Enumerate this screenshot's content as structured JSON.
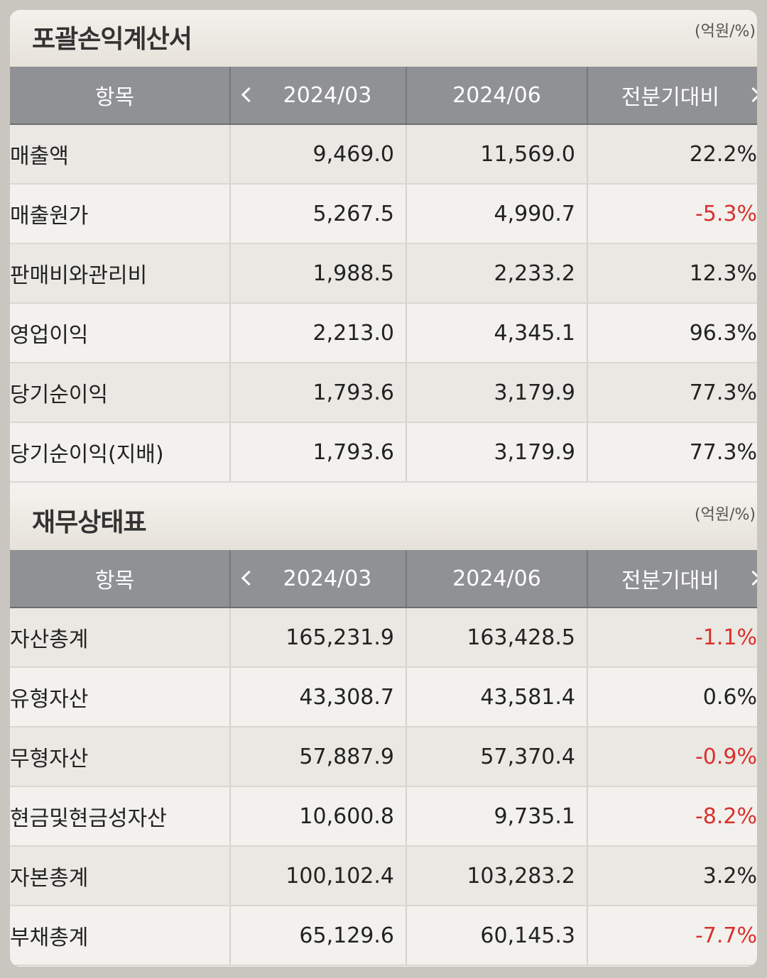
{
  "income_statement": {
    "title": "포괄손익계산서",
    "unit": "(억원/%)",
    "header": {
      "item": "항목",
      "p1": "2024/03",
      "p2": "2024/06",
      "cmp": "전분기대비"
    },
    "rows": [
      {
        "item": "매출액",
        "p1": "9,469.0",
        "p2": "11,569.0",
        "cmp": "22.2%"
      },
      {
        "item": "매출원가",
        "p1": "5,267.5",
        "p2": "4,990.7",
        "cmp": "-5.3%"
      },
      {
        "item": "판매비와관리비",
        "p1": "1,988.5",
        "p2": "2,233.2",
        "cmp": "12.3%"
      },
      {
        "item": "영업이익",
        "p1": "2,213.0",
        "p2": "4,345.1",
        "cmp": "96.3%"
      },
      {
        "item": "당기순이익",
        "p1": "1,793.6",
        "p2": "3,179.9",
        "cmp": "77.3%"
      },
      {
        "item": "당기순이익(지배)",
        "p1": "1,793.6",
        "p2": "3,179.9",
        "cmp": "77.3%"
      }
    ]
  },
  "balance_sheet": {
    "title": "재무상태표",
    "unit": "(억원/%)",
    "header": {
      "item": "항목",
      "p1": "2024/03",
      "p2": "2024/06",
      "cmp": "전분기대비"
    },
    "rows": [
      {
        "item": "자산총계",
        "p1": "165,231.9",
        "p2": "163,428.5",
        "cmp": "-1.1%"
      },
      {
        "item": "유형자산",
        "p1": "43,308.7",
        "p2": "43,581.4",
        "cmp": "0.6%"
      },
      {
        "item": "무형자산",
        "p1": "57,887.9",
        "p2": "57,370.4",
        "cmp": "-0.9%"
      },
      {
        "item": "현금및현금성자산",
        "p1": "10,600.8",
        "p2": "9,735.1",
        "cmp": "-8.2%"
      },
      {
        "item": "자본총계",
        "p1": "100,102.4",
        "p2": "103,283.2",
        "cmp": "3.2%"
      },
      {
        "item": "부채총계",
        "p1": "65,129.6",
        "p2": "60,145.3",
        "cmp": "-7.7%"
      }
    ]
  },
  "colors": {
    "negative": "#d9302c",
    "header_bg": "#8f9194"
  },
  "icons": {
    "prev": "chevron-left-icon",
    "next": "chevron-right-icon"
  }
}
